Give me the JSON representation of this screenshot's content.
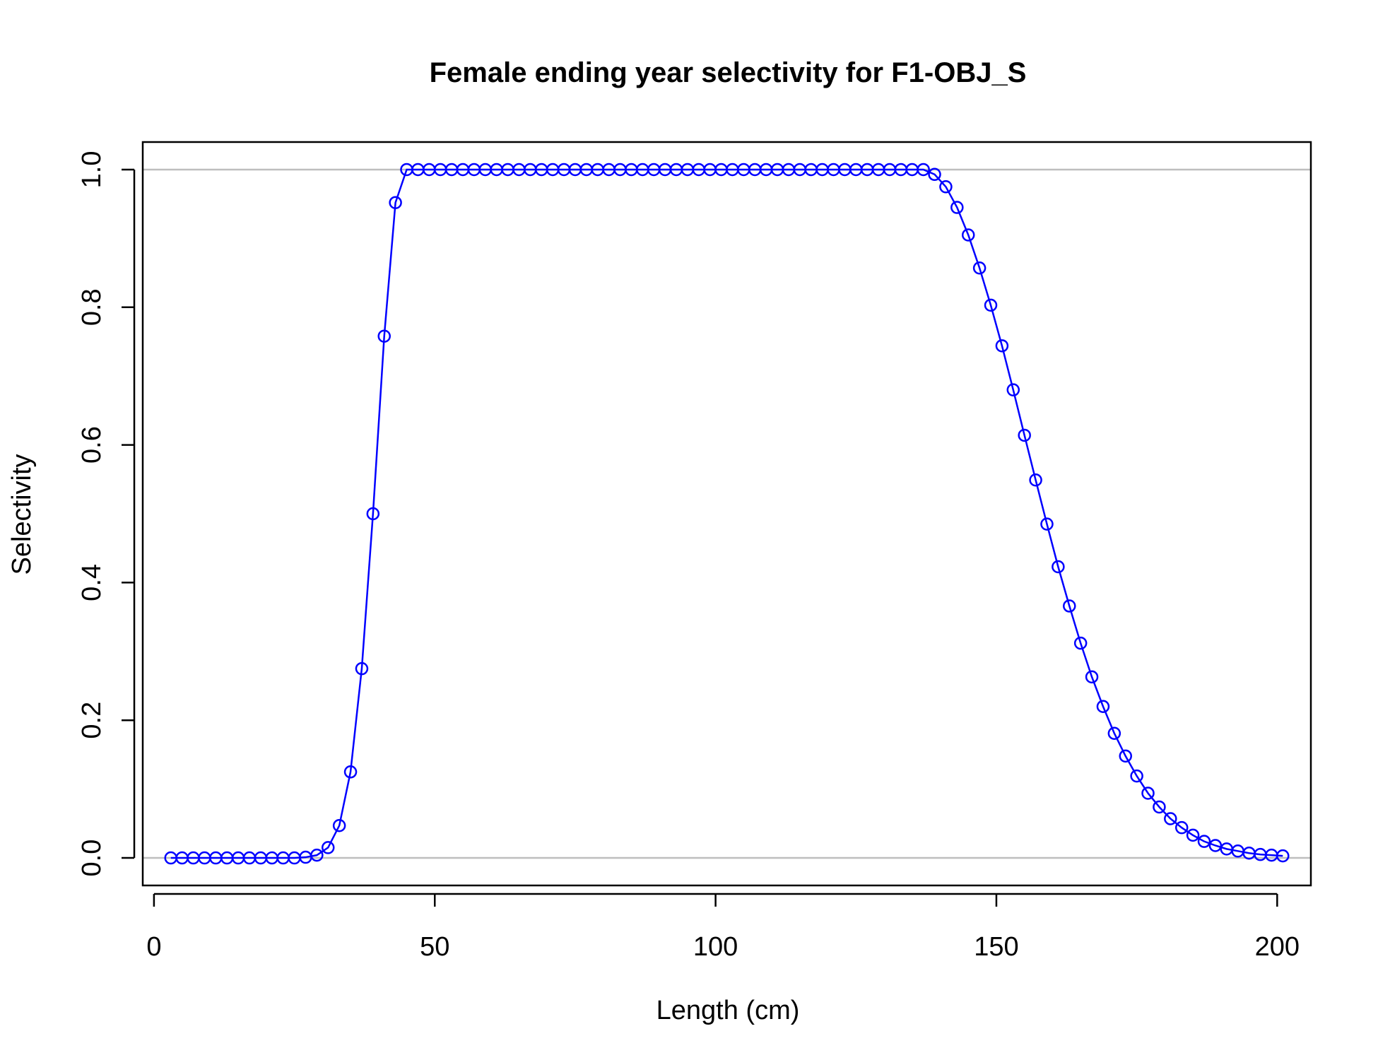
{
  "chart_data": {
    "type": "line",
    "title": "Female ending year selectivity for F1-OBJ_S",
    "xlabel": "Length (cm)",
    "ylabel": "Selectivity",
    "xlim": [
      -2,
      206
    ],
    "ylim": [
      -0.04,
      1.04
    ],
    "x_ticks": [
      0,
      50,
      100,
      150,
      200
    ],
    "x_tick_labels": [
      "0",
      "50",
      "100",
      "150",
      "200"
    ],
    "y_ticks": [
      0.0,
      0.2,
      0.4,
      0.6,
      0.8,
      1.0
    ],
    "y_tick_labels": [
      "0.0",
      "0.2",
      "0.4",
      "0.6",
      "0.8",
      "1.0"
    ],
    "reference_lines": [
      0.0,
      1.0
    ],
    "grid": false,
    "legend": "none",
    "line_color": "#0000ff",
    "reference_line_color": "#bebebe",
    "marker": "open-circle",
    "series": [
      {
        "x": [
          3,
          5,
          7,
          9,
          11,
          13,
          15,
          17,
          19,
          21,
          23,
          25,
          27,
          29,
          31,
          33,
          35,
          37,
          39,
          41,
          43,
          45,
          47,
          49,
          51,
          53,
          55,
          57,
          59,
          61,
          63,
          65,
          67,
          69,
          71,
          73,
          75,
          77,
          79,
          81,
          83,
          85,
          87,
          89,
          91,
          93,
          95,
          97,
          99,
          101,
          103,
          105,
          107,
          109,
          111,
          113,
          115,
          117,
          119,
          121,
          123,
          125,
          127,
          129,
          131,
          133,
          135,
          137,
          139,
          141,
          143,
          145,
          147,
          149,
          151,
          153,
          155,
          157,
          159,
          161,
          163,
          165,
          167,
          169,
          171,
          173,
          175,
          177,
          179,
          181,
          183,
          185,
          187,
          189,
          191,
          193,
          195,
          197,
          199,
          201
        ],
        "values": [
          0.0,
          0.0,
          0.0,
          0.0,
          0.0,
          0.0,
          0.0,
          0.0,
          0.0,
          0.0,
          0.0,
          0.0,
          0.001,
          0.004,
          0.015,
          0.047,
          0.125,
          0.275,
          0.5,
          0.758,
          0.952,
          1.0,
          1.0,
          1.0,
          1.0,
          1.0,
          1.0,
          1.0,
          1.0,
          1.0,
          1.0,
          1.0,
          1.0,
          1.0,
          1.0,
          1.0,
          1.0,
          1.0,
          1.0,
          1.0,
          1.0,
          1.0,
          1.0,
          1.0,
          1.0,
          1.0,
          1.0,
          1.0,
          1.0,
          1.0,
          1.0,
          1.0,
          1.0,
          1.0,
          1.0,
          1.0,
          1.0,
          1.0,
          1.0,
          1.0,
          1.0,
          1.0,
          1.0,
          1.0,
          1.0,
          1.0,
          1.0,
          1.0,
          0.993,
          0.975,
          0.945,
          0.905,
          0.857,
          0.803,
          0.744,
          0.68,
          0.614,
          0.549,
          0.485,
          0.423,
          0.366,
          0.312,
          0.263,
          0.22,
          0.181,
          0.148,
          0.119,
          0.094,
          0.074,
          0.057,
          0.044,
          0.033,
          0.024,
          0.018,
          0.013,
          0.01,
          0.007,
          0.005,
          0.004,
          0.003
        ]
      }
    ]
  }
}
